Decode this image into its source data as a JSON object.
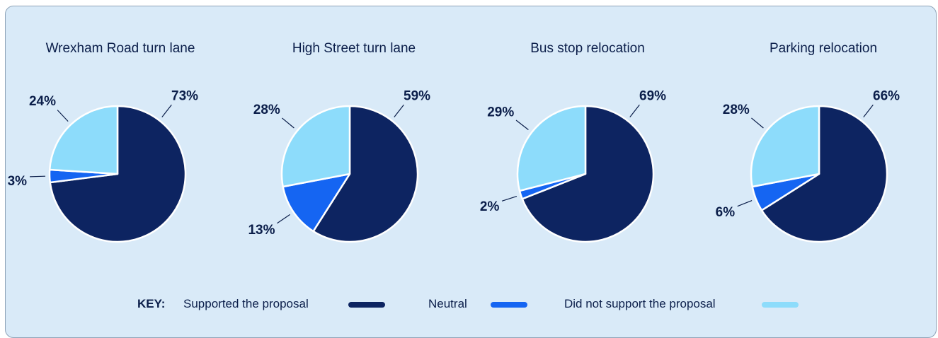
{
  "colors": {
    "supported": "#0d2461",
    "neutral": "#1565f2",
    "not_supported": "#8ddcfb",
    "background": "#d9eaf8",
    "text": "#0b1e4a"
  },
  "chart_data": [
    {
      "type": "pie",
      "title": "Wrexham Road turn lane",
      "slices": [
        {
          "label": "Supported the proposal",
          "value": 73,
          "display": "73%"
        },
        {
          "label": "Neutral",
          "value": 3,
          "display": "3%"
        },
        {
          "label": "Did not support the proposal",
          "value": 24,
          "display": "24%"
        }
      ]
    },
    {
      "type": "pie",
      "title": "High Street turn lane",
      "slices": [
        {
          "label": "Supported the proposal",
          "value": 59,
          "display": "59%"
        },
        {
          "label": "Neutral",
          "value": 13,
          "display": "13%"
        },
        {
          "label": "Did not support the proposal",
          "value": 28,
          "display": "28%"
        }
      ]
    },
    {
      "type": "pie",
      "title": "Bus stop relocation",
      "slices": [
        {
          "label": "Supported the proposal",
          "value": 69,
          "display": "69%"
        },
        {
          "label": "Neutral",
          "value": 2,
          "display": "2%"
        },
        {
          "label": "Did not support the proposal",
          "value": 29,
          "display": "29%"
        }
      ]
    },
    {
      "type": "pie",
      "title": "Parking relocation",
      "slices": [
        {
          "label": "Supported the proposal",
          "value": 66,
          "display": "66%"
        },
        {
          "label": "Neutral",
          "value": 6,
          "display": "6%"
        },
        {
          "label": "Did not support the proposal",
          "value": 28,
          "display": "28%"
        }
      ]
    }
  ],
  "key": {
    "heading": "KEY:",
    "items": [
      {
        "label": "Supported the proposal"
      },
      {
        "label": "Neutral"
      },
      {
        "label": "Did not support the proposal"
      }
    ]
  }
}
